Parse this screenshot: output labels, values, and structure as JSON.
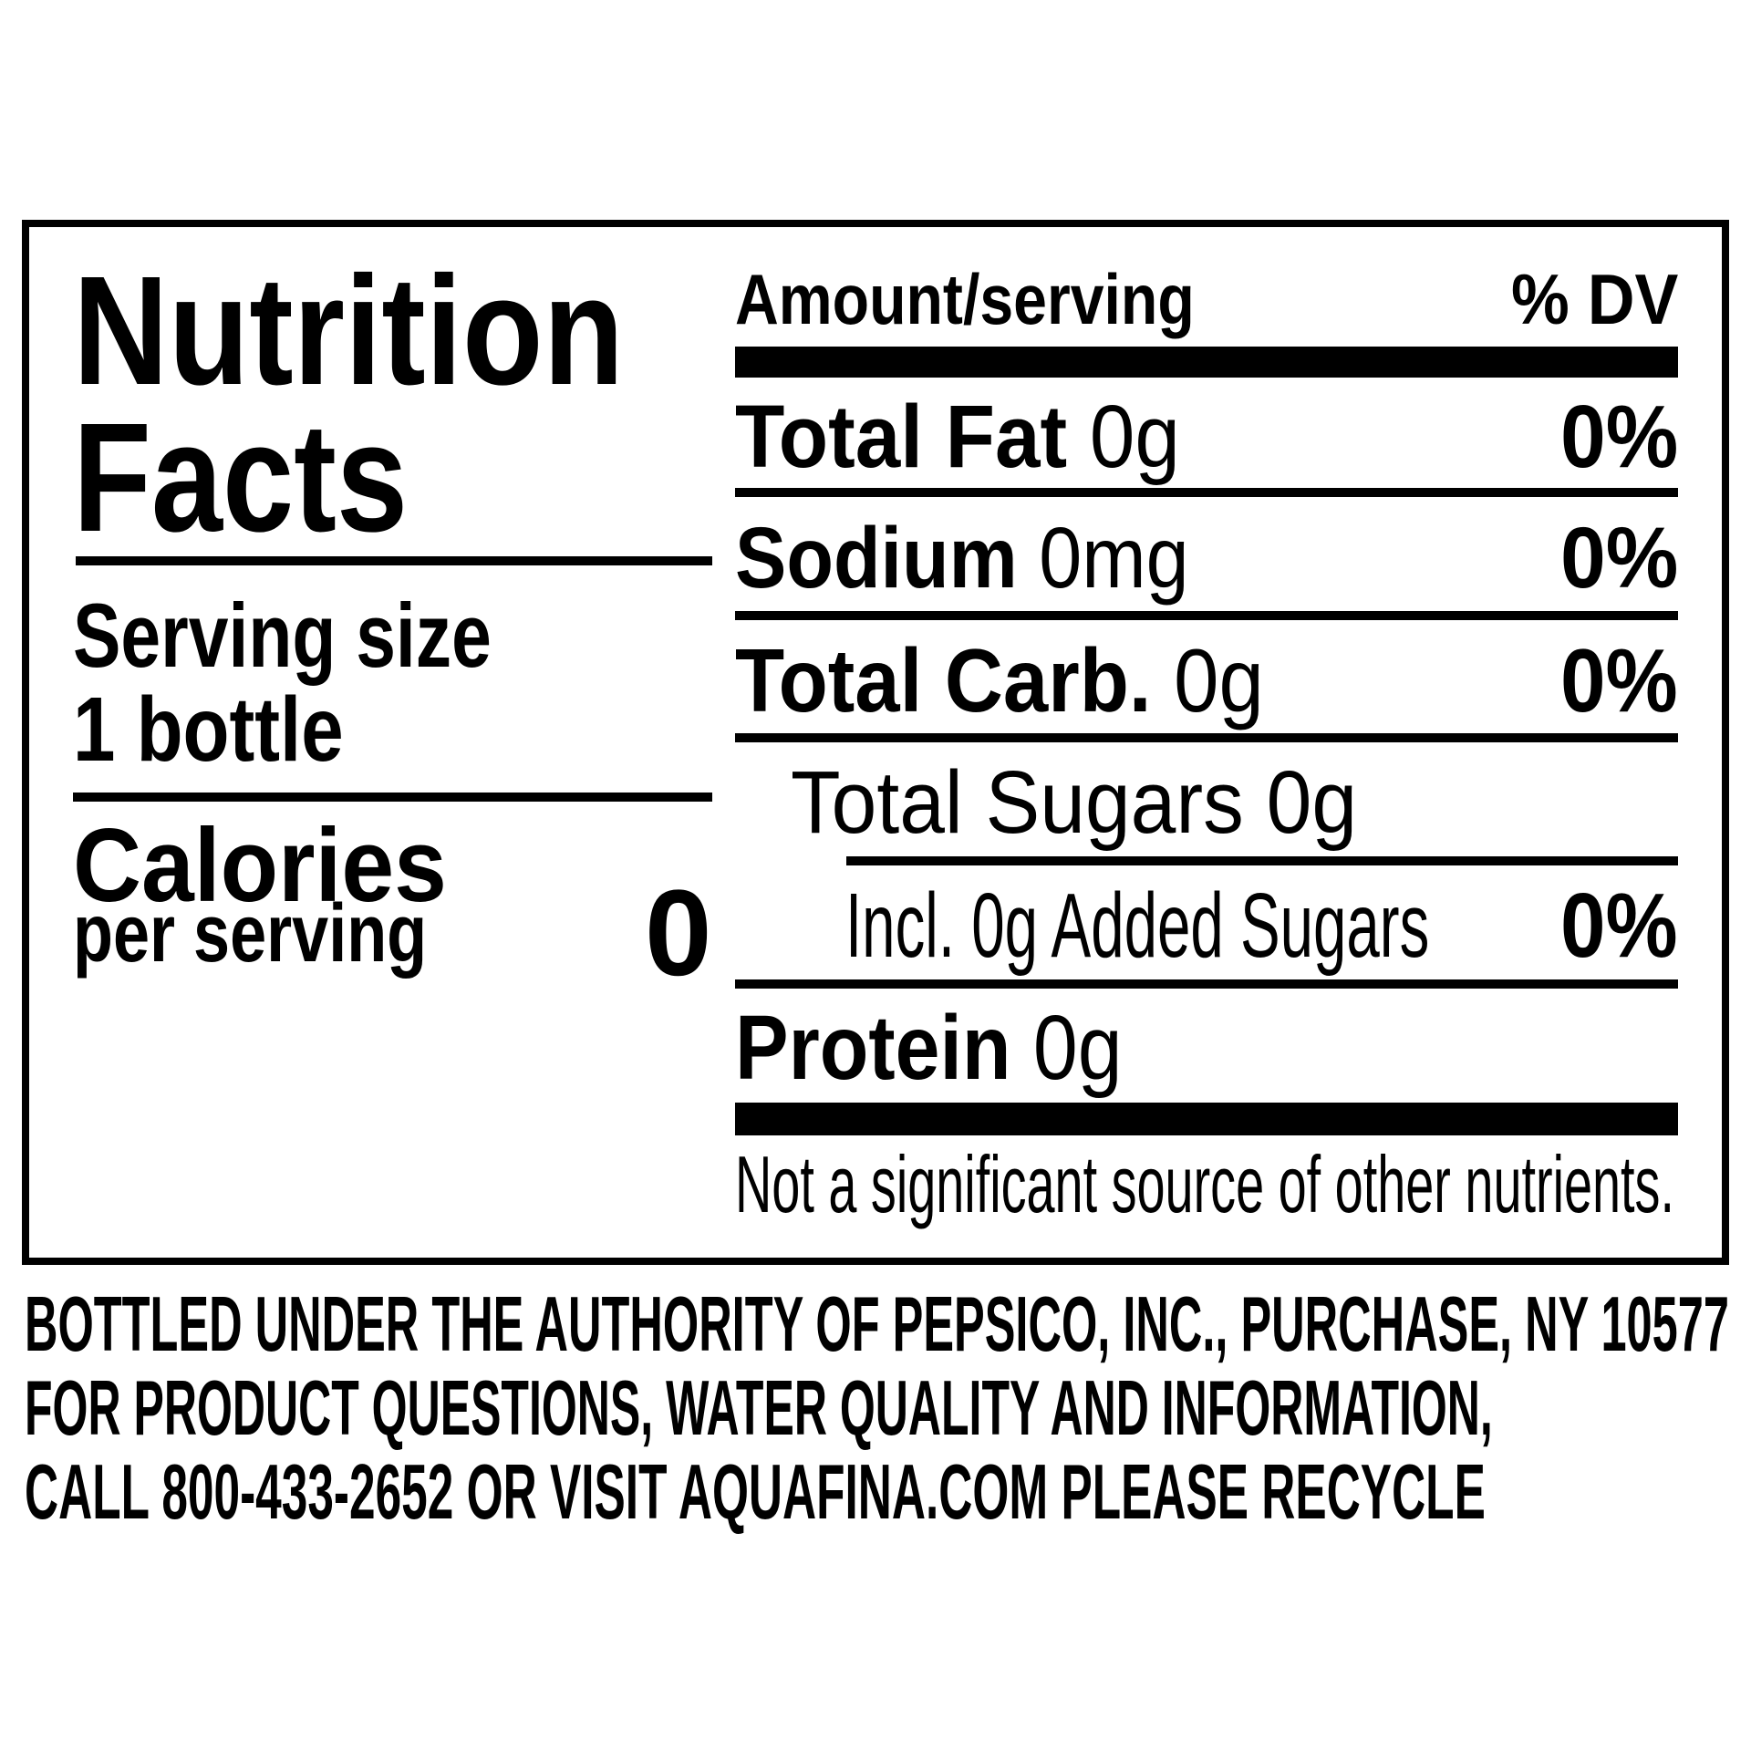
{
  "label": {
    "title_line1": "Nutrition",
    "title_line2": "Facts",
    "serving_size_label": "Serving size",
    "serving_size_value": "1 bottle",
    "calories_label": "Calories",
    "calories_sub": "per serving",
    "calories_value": "0",
    "header_amount": "Amount/serving",
    "header_dv": "% DV",
    "nutrients": [
      {
        "name": "Total Fat",
        "amount": "0g",
        "dv": "0%"
      },
      {
        "name": "Sodium",
        "amount": "0mg",
        "dv": "0%"
      },
      {
        "name": "Total Carb.",
        "amount": "0g",
        "dv": "0%"
      },
      {
        "name": "Total Sugars 0g",
        "amount": "",
        "dv": ""
      },
      {
        "name": "Incl. 0g Added Sugars",
        "amount": "",
        "dv": "0%"
      },
      {
        "name": "Protein",
        "amount": "0g",
        "dv": ""
      }
    ],
    "footnote": "Not a significant source of other nutrients."
  },
  "footer": {
    "lines": [
      "BOTTLED UNDER THE AUTHORITY OF PEPSICO, INC., PURCHASE, NY 10577",
      "FOR PRODUCT QUESTIONS, WATER QUALITY AND INFORMATION,",
      "CALL 800-433-2652 OR VISIT AQUAFINA.COM PLEASE RECYCLE"
    ]
  }
}
